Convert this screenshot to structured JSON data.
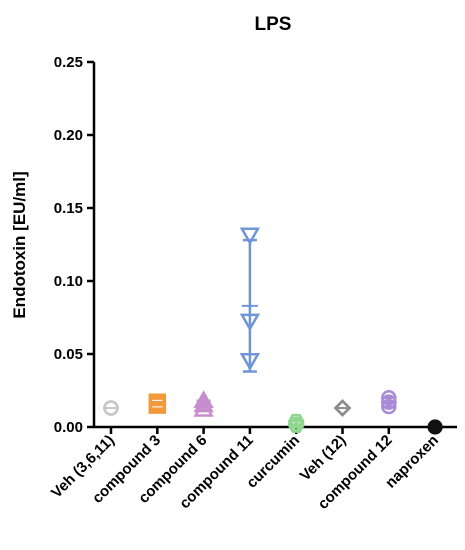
{
  "chart_data": {
    "type": "scatter",
    "title": "LPS",
    "ylabel": "Endotoxin [EU/ml]",
    "xlabel": "",
    "ylim": [
      0,
      0.25
    ],
    "yticks": [
      "0.00",
      "0.05",
      "0.10",
      "0.15",
      "0.20",
      "0.25"
    ],
    "ytick_values": [
      0,
      0.05,
      0.1,
      0.15,
      0.2,
      0.25
    ],
    "grid": false,
    "categories": [
      "Veh (3,6,11)",
      "compound 3",
      "compound 6",
      "compound 11",
      "curcumin",
      "Veh (12)",
      "compound 12",
      "naproxen"
    ],
    "groups": [
      {
        "category": "Veh (3,6,11)",
        "marker": "circle",
        "color": "#c8c8c8",
        "values": [
          0.013,
          0.013,
          0.013
        ],
        "mean": 0.013,
        "err_low": 0.013,
        "err_high": 0.013
      },
      {
        "category": "compound 3",
        "marker": "square",
        "color": "#f29a3a",
        "values": [
          0.015,
          0.016,
          0.017
        ],
        "mean": 0.016,
        "err_low": 0.015,
        "err_high": 0.017
      },
      {
        "category": "compound 6",
        "marker": "triangle-up",
        "color": "#c78ecf",
        "values": [
          0.012,
          0.015,
          0.018
        ],
        "mean": 0.015,
        "err_low": 0.012,
        "err_high": 0.018
      },
      {
        "category": "compound 11",
        "marker": "triangle-down",
        "color": "#6f95d6",
        "values": [
          0.131,
          0.072,
          0.045
        ],
        "mean": 0.083,
        "err_low": 0.038,
        "err_high": 0.128
      },
      {
        "category": "curcumin",
        "marker": "hexagon",
        "color": "#8fd68f",
        "values": [
          0.001,
          0.002,
          0.004
        ],
        "mean": 0.002,
        "err_low": 0.001,
        "err_high": 0.004
      },
      {
        "category": "Veh (12)",
        "marker": "diamond",
        "color": "#8c8c8c",
        "values": [
          0.013,
          0.013,
          0.013
        ],
        "mean": 0.013,
        "err_low": 0.013,
        "err_high": 0.013
      },
      {
        "category": "compound 12",
        "marker": "circle",
        "color": "#a98ad6",
        "values": [
          0.014,
          0.017,
          0.02
        ],
        "mean": 0.017,
        "err_low": 0.014,
        "err_high": 0.02
      },
      {
        "category": "naproxen",
        "marker": "circle-filled",
        "color": "#111111",
        "values": [
          0.0,
          0.0,
          0.0
        ],
        "mean": 0.0,
        "err_low": 0.0,
        "err_high": 0.0
      }
    ]
  }
}
